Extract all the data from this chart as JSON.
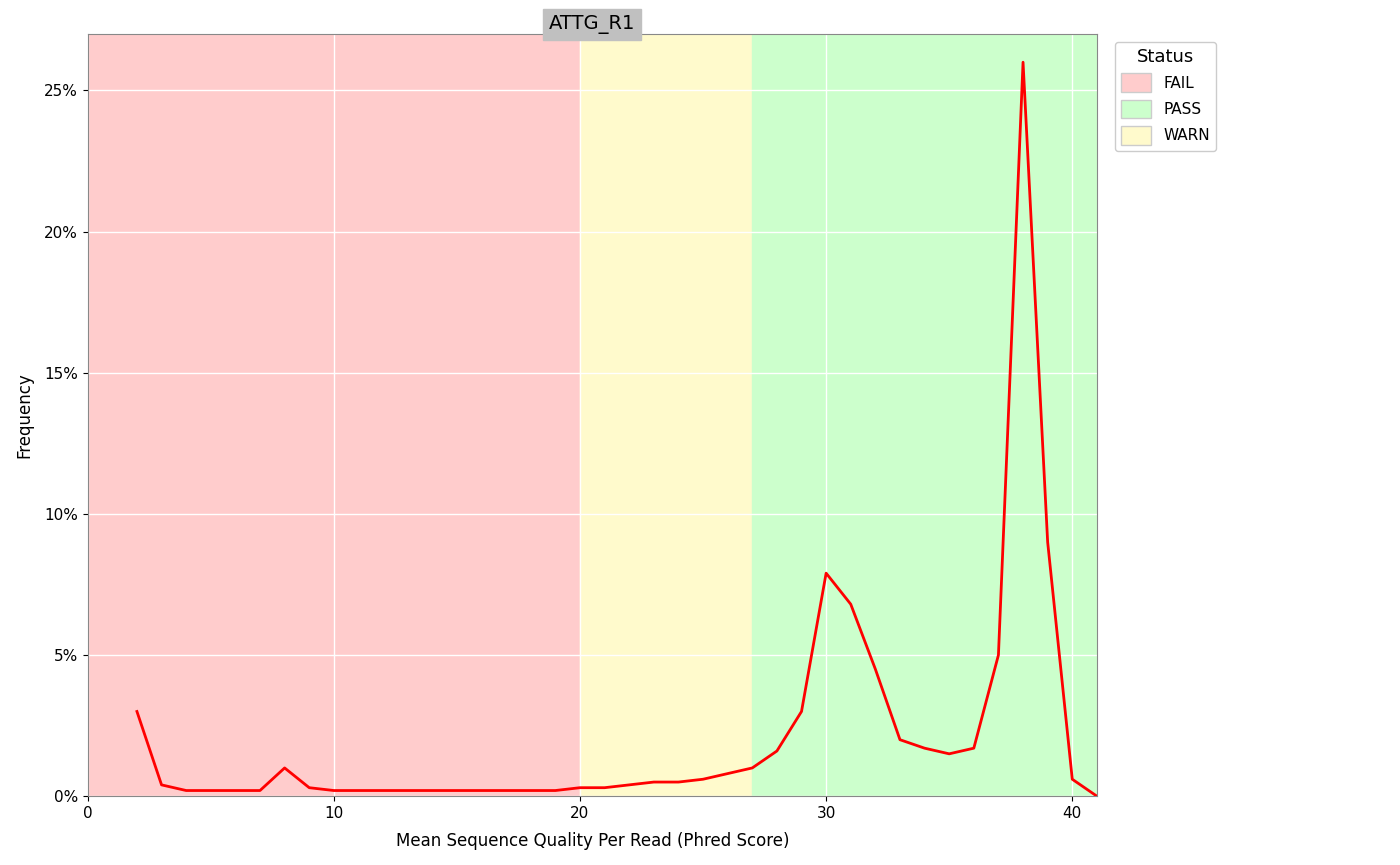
{
  "title": "ATTG_R1",
  "xlabel": "Mean Sequence Quality Per Read (Phred Score)",
  "ylabel": "Frequency",
  "x_values": [
    2,
    3,
    4,
    5,
    6,
    7,
    8,
    9,
    10,
    11,
    12,
    13,
    14,
    15,
    16,
    17,
    18,
    19,
    20,
    21,
    22,
    23,
    24,
    25,
    26,
    27,
    28,
    29,
    30,
    31,
    32,
    33,
    34,
    35,
    36,
    37,
    38,
    39,
    40,
    41
  ],
  "y_values": [
    0.03,
    0.004,
    0.002,
    0.002,
    0.002,
    0.002,
    0.01,
    0.003,
    0.002,
    0.002,
    0.002,
    0.002,
    0.002,
    0.002,
    0.002,
    0.002,
    0.002,
    0.002,
    0.003,
    0.003,
    0.004,
    0.005,
    0.005,
    0.006,
    0.008,
    0.01,
    0.016,
    0.03,
    0.079,
    0.068,
    0.045,
    0.02,
    0.017,
    0.015,
    0.017,
    0.05,
    0.26,
    0.09,
    0.006,
    0.0
  ],
  "xlim": [
    0,
    41
  ],
  "ylim": [
    0,
    0.27
  ],
  "yticks": [
    0.0,
    0.05,
    0.1,
    0.15,
    0.2,
    0.25
  ],
  "ytick_labels": [
    "0%",
    "5%",
    "10%",
    "15%",
    "20%",
    "25%"
  ],
  "xticks": [
    0,
    10,
    20,
    30,
    40
  ],
  "fail_color": "#FFCCCC",
  "warn_color": "#FFFACC",
  "pass_color": "#CCFFCC",
  "fail_region": [
    0,
    20
  ],
  "warn_region": [
    20,
    27
  ],
  "pass_region": [
    27,
    41
  ],
  "line_color": "#FF0000",
  "line_width": 2.0,
  "title_bg_color": "#C0C0C0",
  "title_fontsize": 14,
  "axis_fontsize": 12,
  "legend_title": "Status",
  "legend_items": [
    {
      "label": "FAIL",
      "color": "#FFCCCC"
    },
    {
      "label": "PASS",
      "color": "#CCFFCC"
    },
    {
      "label": "WARN",
      "color": "#FFFACC"
    }
  ],
  "grid_color": "#FFFFFF",
  "plot_bg_color": "#FFFFFF"
}
